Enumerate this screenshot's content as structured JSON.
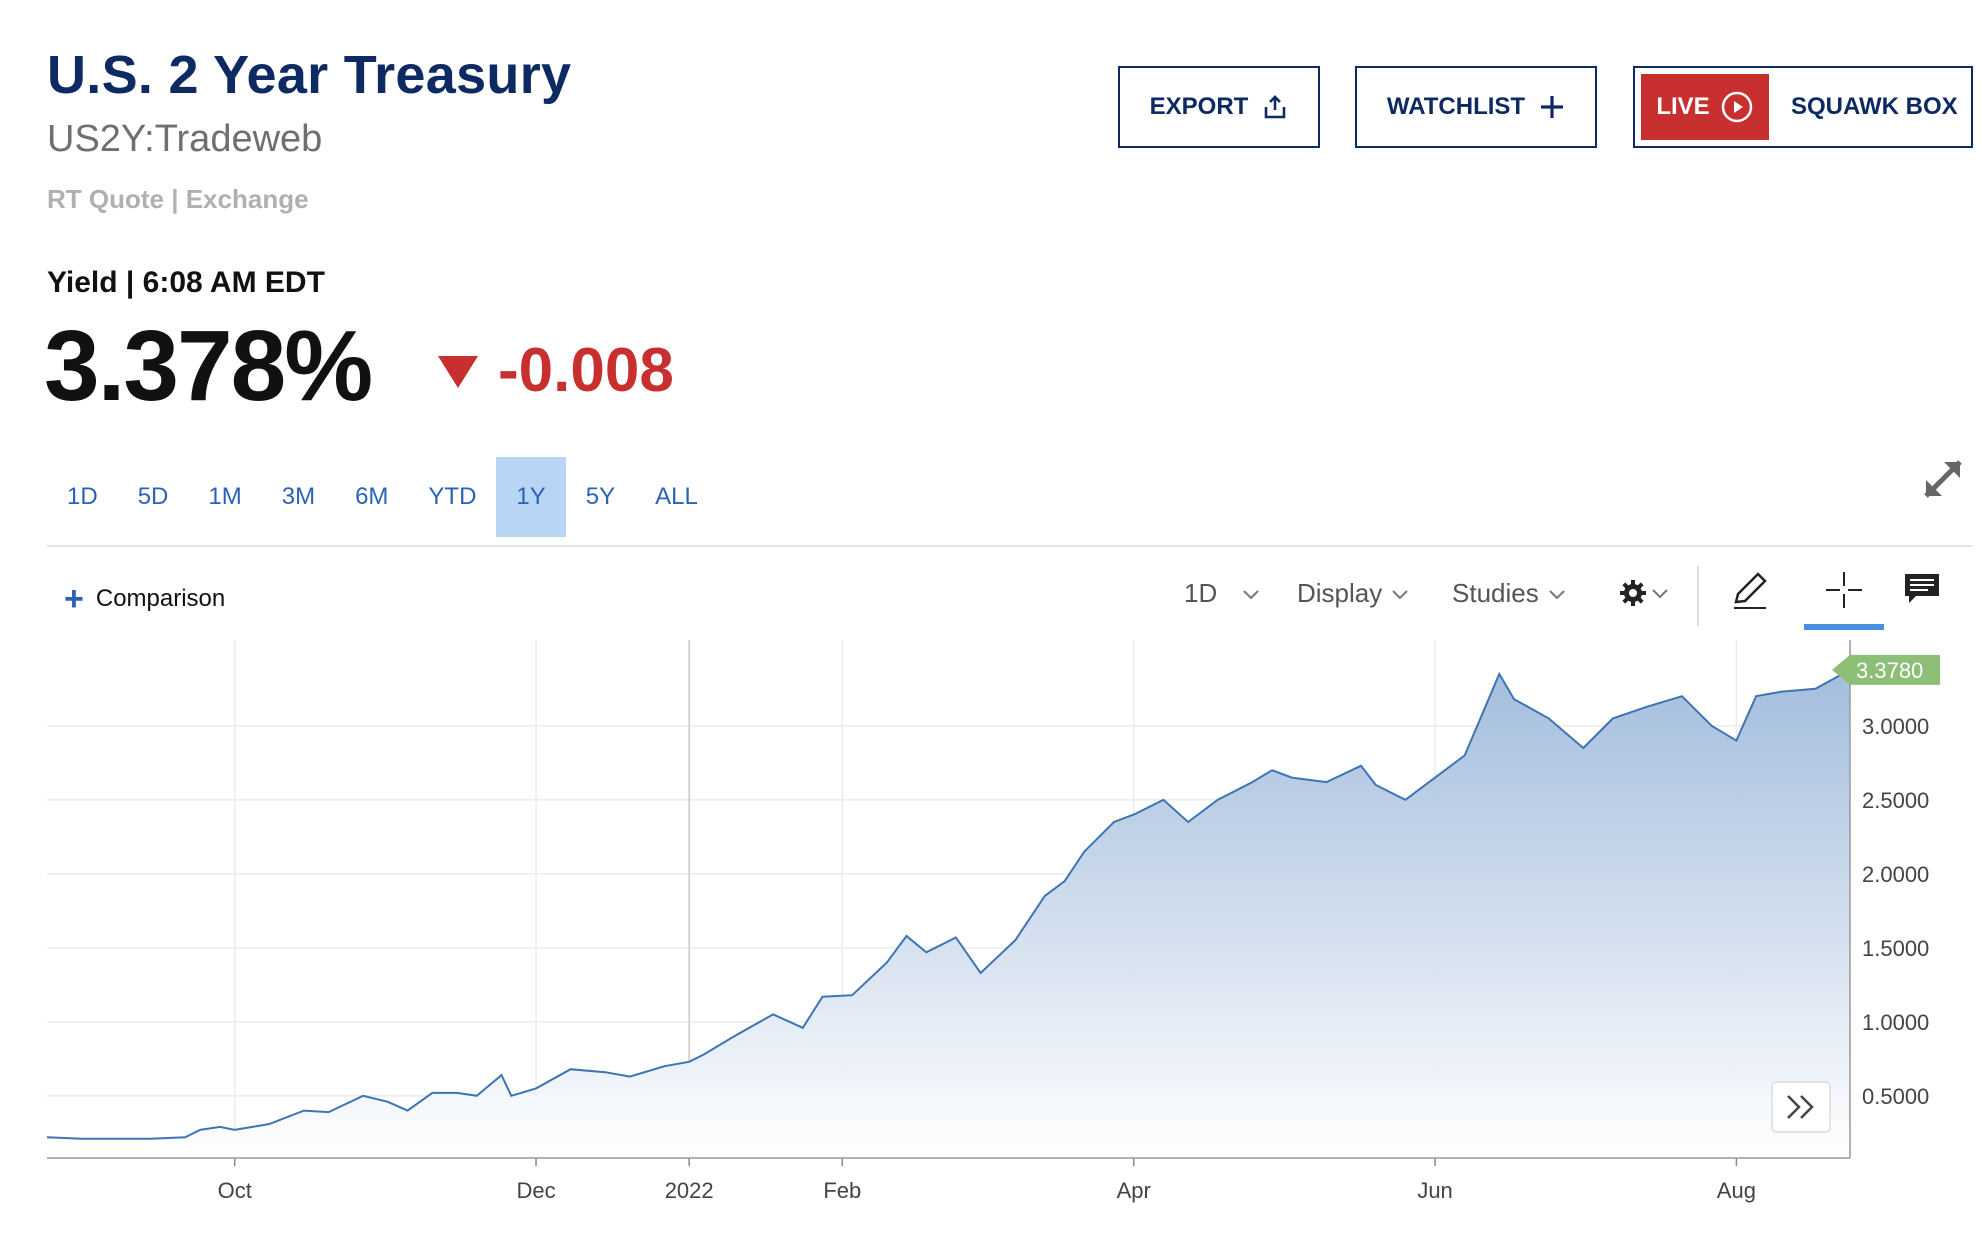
{
  "header": {
    "title": "U.S. 2 Year Treasury",
    "symbol": "US2Y:Tradeweb",
    "quote_source": "RT Quote | Exchange"
  },
  "actions": {
    "export_label": "EXPORT",
    "watchlist_label": "WATCHLIST",
    "live_label": "LIVE",
    "squawk_label": "SQUAWK BOX"
  },
  "quote": {
    "yield_label": "Yield | 6:08 AM EDT",
    "value": "3.378%",
    "change": "-0.008",
    "change_color": "#c8302f"
  },
  "range_tabs": [
    {
      "label": "1D"
    },
    {
      "label": "5D"
    },
    {
      "label": "1M"
    },
    {
      "label": "3M"
    },
    {
      "label": "6M"
    },
    {
      "label": "YTD"
    },
    {
      "label": "1Y"
    },
    {
      "label": "5Y"
    },
    {
      "label": "ALL"
    }
  ],
  "active_range": "1Y",
  "toolbar": {
    "comparison_label": "Comparison",
    "interval_label": "1D",
    "display_label": "Display",
    "studies_label": "Studies"
  },
  "chart_data": {
    "type": "area",
    "last_value_label": "3.3780",
    "last_value_color": "#8dbf76",
    "line_color": "#3d74b4",
    "y_ticks": [
      "0.5000",
      "1.0000",
      "1.5000",
      "2.0000",
      "2.5000",
      "3.0000"
    ],
    "y_tick_values": [
      0.5,
      1.0,
      1.5,
      2.0,
      2.5,
      3.0
    ],
    "ylim": [
      0.08,
      3.58
    ],
    "x_ticks": [
      "Oct",
      "Dec",
      "2022",
      "Feb",
      "Apr",
      "Jun",
      "Aug"
    ],
    "x_tick_dates": [
      "2021-10-01",
      "2021-12-01",
      "2022-01-01",
      "2022-02-01",
      "2022-04-01",
      "2022-06-01",
      "2022-08-01"
    ],
    "xlim": [
      "2021-08-24",
      "2022-08-24"
    ],
    "grid": true,
    "series": [
      {
        "points": [
          [
            "2021-08-24",
            0.22
          ],
          [
            "2021-08-31",
            0.21
          ],
          [
            "2021-09-07",
            0.21
          ],
          [
            "2021-09-14",
            0.21
          ],
          [
            "2021-09-21",
            0.22
          ],
          [
            "2021-09-24",
            0.27
          ],
          [
            "2021-09-28",
            0.29
          ],
          [
            "2021-10-01",
            0.27
          ],
          [
            "2021-10-08",
            0.31
          ],
          [
            "2021-10-15",
            0.4
          ],
          [
            "2021-10-20",
            0.39
          ],
          [
            "2021-10-27",
            0.5
          ],
          [
            "2021-11-01",
            0.46
          ],
          [
            "2021-11-05",
            0.4
          ],
          [
            "2021-11-10",
            0.52
          ],
          [
            "2021-11-15",
            0.52
          ],
          [
            "2021-11-19",
            0.5
          ],
          [
            "2021-11-24",
            0.64
          ],
          [
            "2021-11-26",
            0.5
          ],
          [
            "2021-12-01",
            0.55
          ],
          [
            "2021-12-08",
            0.68
          ],
          [
            "2021-12-15",
            0.66
          ],
          [
            "2021-12-20",
            0.63
          ],
          [
            "2021-12-27",
            0.7
          ],
          [
            "2022-01-01",
            0.73
          ],
          [
            "2022-01-04",
            0.78
          ],
          [
            "2022-01-10",
            0.9
          ],
          [
            "2022-01-18",
            1.05
          ],
          [
            "2022-01-24",
            0.96
          ],
          [
            "2022-01-28",
            1.17
          ],
          [
            "2022-02-03",
            1.18
          ],
          [
            "2022-02-10",
            1.4
          ],
          [
            "2022-02-14",
            1.58
          ],
          [
            "2022-02-18",
            1.47
          ],
          [
            "2022-02-24",
            1.57
          ],
          [
            "2022-03-01",
            1.33
          ],
          [
            "2022-03-08",
            1.55
          ],
          [
            "2022-03-14",
            1.85
          ],
          [
            "2022-03-18",
            1.95
          ],
          [
            "2022-03-22",
            2.15
          ],
          [
            "2022-03-28",
            2.35
          ],
          [
            "2022-04-01",
            2.4
          ],
          [
            "2022-04-07",
            2.5
          ],
          [
            "2022-04-12",
            2.35
          ],
          [
            "2022-04-18",
            2.5
          ],
          [
            "2022-04-25",
            2.62
          ],
          [
            "2022-04-29",
            2.7
          ],
          [
            "2022-05-03",
            2.65
          ],
          [
            "2022-05-10",
            2.62
          ],
          [
            "2022-05-17",
            2.73
          ],
          [
            "2022-05-20",
            2.6
          ],
          [
            "2022-05-26",
            2.5
          ],
          [
            "2022-06-01",
            2.65
          ],
          [
            "2022-06-07",
            2.8
          ],
          [
            "2022-06-14",
            3.35
          ],
          [
            "2022-06-17",
            3.18
          ],
          [
            "2022-06-24",
            3.05
          ],
          [
            "2022-07-01",
            2.85
          ],
          [
            "2022-07-07",
            3.05
          ],
          [
            "2022-07-14",
            3.13
          ],
          [
            "2022-07-21",
            3.2
          ],
          [
            "2022-07-27",
            3.0
          ],
          [
            "2022-08-01",
            2.9
          ],
          [
            "2022-08-05",
            3.2
          ],
          [
            "2022-08-10",
            3.23
          ],
          [
            "2022-08-17",
            3.25
          ],
          [
            "2022-08-24",
            3.378
          ]
        ]
      }
    ]
  }
}
